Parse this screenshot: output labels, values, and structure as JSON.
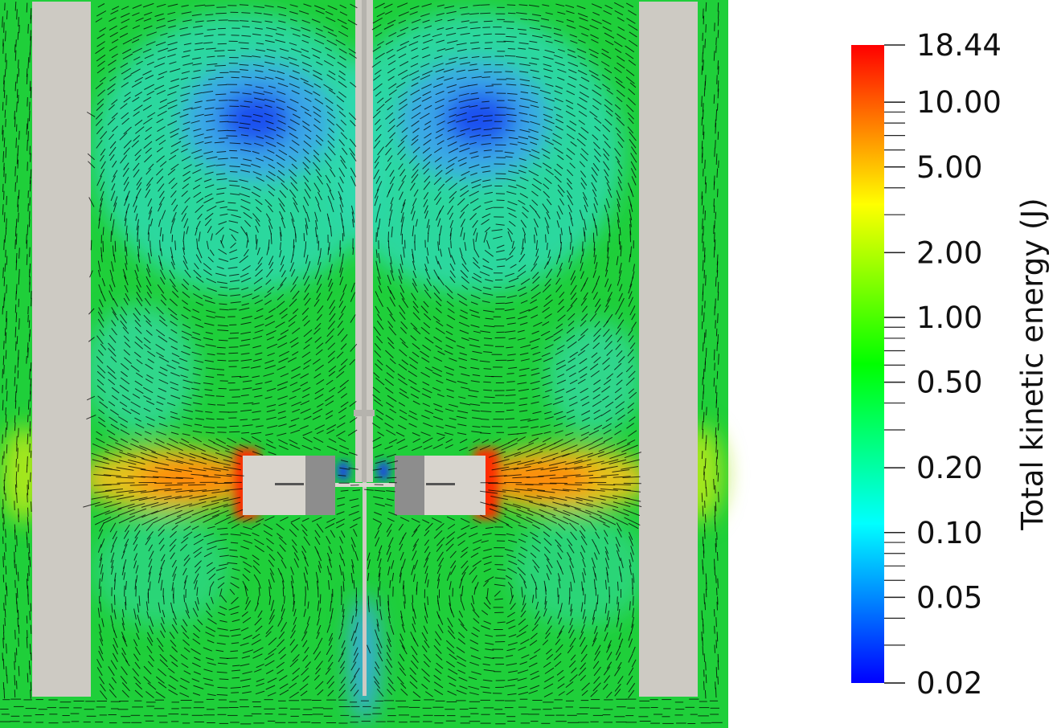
{
  "colorbar": {
    "title": "Total kinetic energy (J)",
    "scale": "log",
    "min": 0.02,
    "max": 18.44,
    "colormap": [
      "#0000ff",
      "#00ffff",
      "#00ff00",
      "#ffff00",
      "#ff0000"
    ],
    "labels": [
      {
        "text": "18.44",
        "value": 18.44
      },
      {
        "text": "10.00",
        "value": 10.0
      },
      {
        "text": "5.00",
        "value": 5.0
      },
      {
        "text": "2.00",
        "value": 2.0
      },
      {
        "text": "1.00",
        "value": 1.0
      },
      {
        "text": "0.50",
        "value": 0.5
      },
      {
        "text": "0.20",
        "value": 0.2
      },
      {
        "text": "0.10",
        "value": 0.1
      },
      {
        "text": "0.05",
        "value": 0.05
      },
      {
        "text": "0.02",
        "value": 0.02
      }
    ]
  },
  "scene": {
    "tank_background": "#1fcf3a",
    "solid_color": "#cdcac3",
    "impeller_block_color": "#d7d4cd",
    "impeller_hub_color": "#8d8d8d",
    "vector_color": "#000000"
  }
}
